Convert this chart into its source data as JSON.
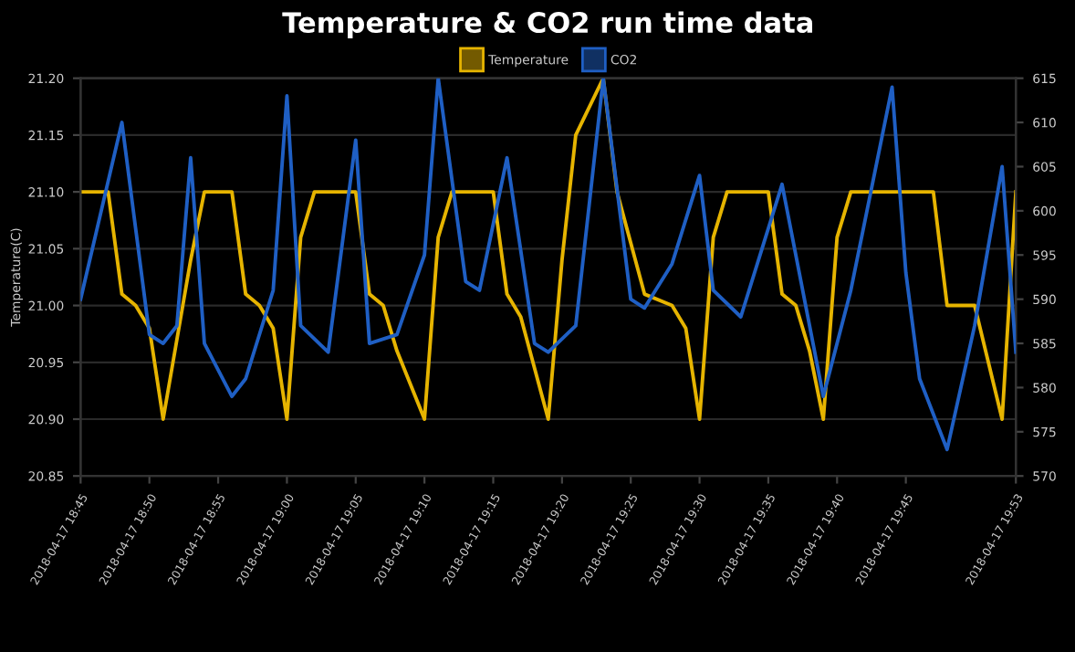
{
  "chart_data": {
    "type": "line",
    "title": "Temperature & CO2 run time data",
    "ylabel": "Temperature(C)",
    "legend": "top",
    "grid": "y",
    "marker": "none",
    "line_style": "solid",
    "xlim": [
      "2018-04-17T18:45",
      "2018-04-17T19:53"
    ],
    "xticks": [
      {
        "value": "2018-04-17T18:45",
        "label": "2018-04-17 18:45"
      },
      {
        "value": "2018-04-17T18:50",
        "label": "2018-04-17 18:50"
      },
      {
        "value": "2018-04-17T18:55",
        "label": "2018-04-17 18:55"
      },
      {
        "value": "2018-04-17T19:00",
        "label": "2018-04-17 19:00"
      },
      {
        "value": "2018-04-17T19:05",
        "label": "2018-04-17 19:05"
      },
      {
        "value": "2018-04-17T19:10",
        "label": "2018-04-17 19:10"
      },
      {
        "value": "2018-04-17T19:15",
        "label": "2018-04-17 19:15"
      },
      {
        "value": "2018-04-17T19:20",
        "label": "2018-04-17 19:20"
      },
      {
        "value": "2018-04-17T19:25",
        "label": "2018-04-17 19:25"
      },
      {
        "value": "2018-04-17T19:30",
        "label": "2018-04-17 19:30"
      },
      {
        "value": "2018-04-17T19:35",
        "label": "2018-04-17 19:35"
      },
      {
        "value": "2018-04-17T19:40",
        "label": "2018-04-17 19:40"
      },
      {
        "value": "2018-04-17T19:45",
        "label": "2018-04-17 19:45"
      },
      {
        "value": "2018-04-17T19:53",
        "label": "2018-04-17 19:53"
      }
    ],
    "ylim": [
      20.85,
      21.2
    ],
    "yticks": [
      {
        "value": 20.85,
        "label": "20.85"
      },
      {
        "value": 20.9,
        "label": "20.90"
      },
      {
        "value": 20.95,
        "label": "20.95"
      },
      {
        "value": 21.0,
        "label": "21.00"
      },
      {
        "value": 21.05,
        "label": "21.05"
      },
      {
        "value": 21.1,
        "label": "21.10"
      },
      {
        "value": 21.15,
        "label": "21.15"
      },
      {
        "value": 21.2,
        "label": "21.20"
      }
    ],
    "y2lim": [
      570,
      615
    ],
    "y2ticks": [
      570,
      575,
      580,
      585,
      590,
      595,
      600,
      605,
      610,
      615
    ],
    "series": [
      {
        "name": "Temperature",
        "color": "#e6b400",
        "x": [
          "2018-04-17T18:45",
          "2018-04-17T18:47",
          "2018-04-17T18:48",
          "2018-04-17T18:49",
          "2018-04-17T18:50",
          "2018-04-17T18:51",
          "2018-04-17T18:53",
          "2018-04-17T18:54",
          "2018-04-17T18:56",
          "2018-04-17T18:57",
          "2018-04-17T18:58",
          "2018-04-17T18:59",
          "2018-04-17T19:00",
          "2018-04-17T19:01",
          "2018-04-17T19:02",
          "2018-04-17T19:05",
          "2018-04-17T19:06",
          "2018-04-17T19:07",
          "2018-04-17T19:08",
          "2018-04-17T19:10",
          "2018-04-17T19:11",
          "2018-04-17T19:12",
          "2018-04-17T19:15",
          "2018-04-17T19:16",
          "2018-04-17T19:17",
          "2018-04-17T19:19",
          "2018-04-17T19:20",
          "2018-04-17T19:21",
          "2018-04-17T19:23",
          "2018-04-17T19:24",
          "2018-04-17T19:26",
          "2018-04-17T19:28",
          "2018-04-17T19:29",
          "2018-04-17T19:30",
          "2018-04-17T19:31",
          "2018-04-17T19:32",
          "2018-04-17T19:35",
          "2018-04-17T19:36",
          "2018-04-17T19:37",
          "2018-04-17T19:38",
          "2018-04-17T19:39",
          "2018-04-17T19:40",
          "2018-04-17T19:41",
          "2018-04-17T19:43",
          "2018-04-17T19:47",
          "2018-04-17T19:48",
          "2018-04-17T19:50",
          "2018-04-17T19:52",
          "2018-04-17T19:53"
        ],
        "values": [
          21.1,
          21.1,
          21.01,
          21.0,
          20.98,
          20.9,
          21.04,
          21.1,
          21.1,
          21.01,
          21.0,
          20.98,
          20.9,
          21.06,
          21.1,
          21.1,
          21.01,
          21.0,
          20.96,
          20.9,
          21.06,
          21.1,
          21.1,
          21.01,
          20.99,
          20.9,
          21.04,
          21.15,
          21.2,
          21.1,
          21.01,
          21.0,
          20.98,
          20.9,
          21.06,
          21.1,
          21.1,
          21.01,
          21.0,
          20.96,
          20.9,
          21.06,
          21.1,
          21.1,
          21.1,
          21.0,
          21.0,
          20.9,
          21.1
        ]
      },
      {
        "name": "CO2",
        "color": "#1f5fc4",
        "axis": "y2",
        "x": [
          "2018-04-17T18:45",
          "2018-04-17T18:48",
          "2018-04-17T18:50",
          "2018-04-17T18:51",
          "2018-04-17T18:52",
          "2018-04-17T18:53",
          "2018-04-17T18:54",
          "2018-04-17T18:56",
          "2018-04-17T18:57",
          "2018-04-17T18:59",
          "2018-04-17T19:00",
          "2018-04-17T19:01",
          "2018-04-17T19:03",
          "2018-04-17T19:05",
          "2018-04-17T19:06",
          "2018-04-17T19:08",
          "2018-04-17T19:10",
          "2018-04-17T19:11",
          "2018-04-17T19:13",
          "2018-04-17T19:14",
          "2018-04-17T19:16",
          "2018-04-17T19:18",
          "2018-04-17T19:19",
          "2018-04-17T19:21",
          "2018-04-17T19:23",
          "2018-04-17T19:25",
          "2018-04-17T19:26",
          "2018-04-17T19:28",
          "2018-04-17T19:30",
          "2018-04-17T19:31",
          "2018-04-17T19:33",
          "2018-04-17T19:35",
          "2018-04-17T19:36",
          "2018-04-17T19:38",
          "2018-04-17T19:39",
          "2018-04-17T19:41",
          "2018-04-17T19:44",
          "2018-04-17T19:45",
          "2018-04-17T19:46",
          "2018-04-17T19:48",
          "2018-04-17T19:50",
          "2018-04-17T19:52",
          "2018-04-17T19:53"
        ],
        "values": [
          590,
          610,
          586,
          585,
          587,
          606,
          585,
          579,
          581,
          591,
          613,
          587,
          584,
          608,
          585,
          586,
          595,
          615,
          592,
          591,
          606,
          585,
          584,
          587,
          615,
          590,
          589,
          594,
          604,
          591,
          588,
          598,
          603,
          587,
          579,
          591,
          614,
          593,
          581,
          573,
          587,
          605,
          584
        ]
      }
    ]
  }
}
